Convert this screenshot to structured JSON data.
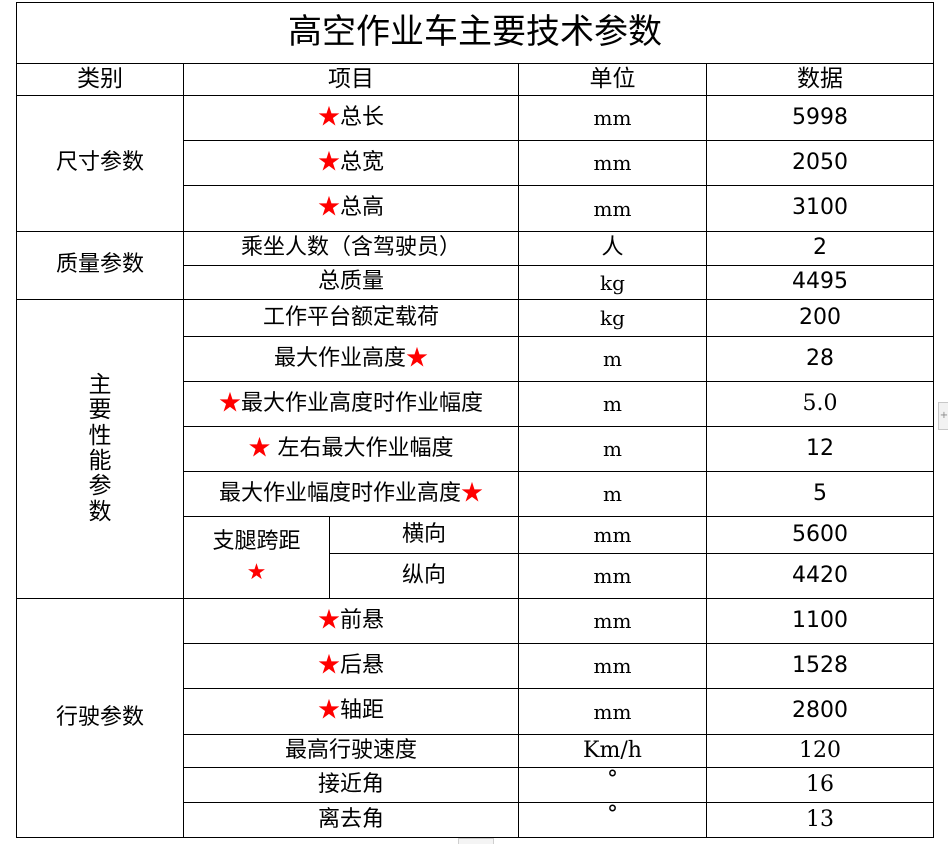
{
  "title": "高空作业车主要技术参数",
  "star": "★",
  "headers": [
    "类别",
    "项目",
    "单位",
    "数据"
  ],
  "categories": {
    "size": "尺寸参数",
    "mass": "质量参数",
    "main_chars": [
      "主",
      "要",
      "性",
      "能",
      "参",
      "数"
    ],
    "driving": "行驶参数"
  },
  "rows": {
    "total_length": {
      "item": "总长",
      "unit": "mm",
      "value": "5998"
    },
    "total_width": {
      "item": "总宽",
      "unit": "mm",
      "value": "2050"
    },
    "total_height": {
      "item": "总高",
      "unit": "mm",
      "value": "3100"
    },
    "passengers": {
      "item": "乘坐人数（含驾驶员）",
      "unit": "人",
      "value": "2"
    },
    "total_mass": {
      "item": "总质量",
      "unit": "kg",
      "value": "4495"
    },
    "rated_load": {
      "item": "工作平台额定载荷",
      "unit": "kg",
      "value": "200"
    },
    "max_height": {
      "item": "最大作业高度",
      "unit": "m",
      "value": "28"
    },
    "amplitude_at_max_height": {
      "item": "最大作业高度时作业幅度",
      "unit": "m",
      "value": "5.0"
    },
    "lr_max_amplitude": {
      "item": " 左右最大作业幅度",
      "unit": "m",
      "value": "12"
    },
    "height_at_max_amplitude": {
      "item": "最大作业幅度时作业高度",
      "unit": "m",
      "value": "5"
    },
    "outrigger": {
      "item": "支腿跨距"
    },
    "outrigger_lateral": {
      "item": "横向",
      "unit": "mm",
      "value": "5600"
    },
    "outrigger_longitudinal": {
      "item": "纵向",
      "unit": "mm",
      "value": "4420"
    },
    "front_overhang": {
      "item": "前悬",
      "unit": "mm",
      "value": "1100"
    },
    "rear_overhang": {
      "item": "后悬",
      "unit": "mm",
      "value": "1528"
    },
    "wheelbase": {
      "item": "轴距",
      "unit": "mm",
      "value": "2800"
    },
    "max_speed": {
      "item": "最高行驶速度",
      "unit": "Km/h",
      "value": "120"
    },
    "approach_angle": {
      "item": "接近角",
      "unit": "°",
      "value": "16"
    },
    "departure_angle": {
      "item": "离去角",
      "unit": "°",
      "value": "13"
    }
  },
  "colors": {
    "star": "#ff0000",
    "border": "#000000"
  }
}
